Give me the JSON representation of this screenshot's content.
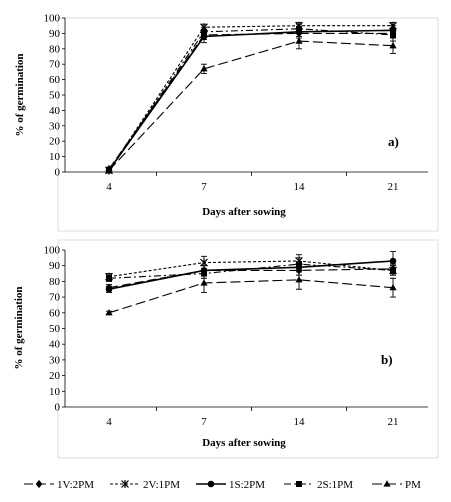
{
  "chart_data": [
    {
      "type": "line",
      "panel_label": "a)",
      "xlabel": "Days after sowing",
      "ylabel": "% of germination",
      "x": [
        "4",
        "7",
        "14",
        "21"
      ],
      "ylim": [
        0,
        100
      ],
      "yticks": [
        0,
        10,
        20,
        30,
        40,
        50,
        60,
        70,
        80,
        90,
        100
      ],
      "grid": false,
      "series": [
        {
          "name": "1V:2PM",
          "values": [
            2,
            89,
            90,
            90
          ],
          "errors": [
            1,
            3,
            3,
            3
          ],
          "style": "longdash",
          "marker": "diamond"
        },
        {
          "name": "2V:1PM",
          "values": [
            1,
            94,
            95,
            95
          ],
          "errors": [
            1,
            2,
            2,
            2
          ],
          "style": "shortdash",
          "marker": "asterisk"
        },
        {
          "name": "1S:2PM",
          "values": [
            1,
            88,
            91,
            92
          ],
          "errors": [
            1,
            4,
            3,
            3
          ],
          "style": "solid",
          "marker": "circle"
        },
        {
          "name": "2S:1PM",
          "values": [
            1,
            91,
            93,
            89
          ],
          "errors": [
            1,
            3,
            3,
            4
          ],
          "style": "dashdot",
          "marker": "square"
        },
        {
          "name": "PM",
          "values": [
            1,
            67,
            85,
            82
          ],
          "errors": [
            1,
            3,
            5,
            5
          ],
          "style": "dash",
          "marker": "triangle"
        }
      ]
    },
    {
      "type": "line",
      "panel_label": "b)",
      "xlabel": "Days after sowing",
      "ylabel": "% of germination",
      "x": [
        "4",
        "7",
        "14",
        "21"
      ],
      "ylim": [
        0,
        100
      ],
      "yticks": [
        0,
        10,
        20,
        30,
        40,
        50,
        60,
        70,
        80,
        90,
        100
      ],
      "grid": false,
      "series": [
        {
          "name": "1V:2PM",
          "values": [
            76,
            87,
            87,
            88
          ],
          "errors": [
            2,
            3,
            3,
            3
          ],
          "style": "longdash",
          "marker": "diamond"
        },
        {
          "name": "2V:1PM",
          "values": [
            83,
            92,
            93,
            87
          ],
          "errors": [
            2,
            4,
            4,
            3
          ],
          "style": "shortdash",
          "marker": "asterisk"
        },
        {
          "name": "1S:2PM",
          "values": [
            75,
            87,
            89,
            93
          ],
          "errors": [
            2,
            3,
            3,
            6
          ],
          "style": "solid",
          "marker": "circle"
        },
        {
          "name": "2S:1PM",
          "values": [
            82,
            85,
            91,
            87
          ],
          "errors": [
            2,
            3,
            4,
            3
          ],
          "style": "dashdot",
          "marker": "square"
        },
        {
          "name": "PM",
          "values": [
            60,
            79,
            81,
            76
          ],
          "errors": [
            1,
            6,
            6,
            6
          ],
          "style": "dash",
          "marker": "triangle"
        }
      ]
    }
  ],
  "legend": {
    "placement": "bottom",
    "entries": [
      "1V:2PM",
      "2V:1PM",
      "1S:2PM",
      "2S:1PM",
      "PM"
    ]
  }
}
